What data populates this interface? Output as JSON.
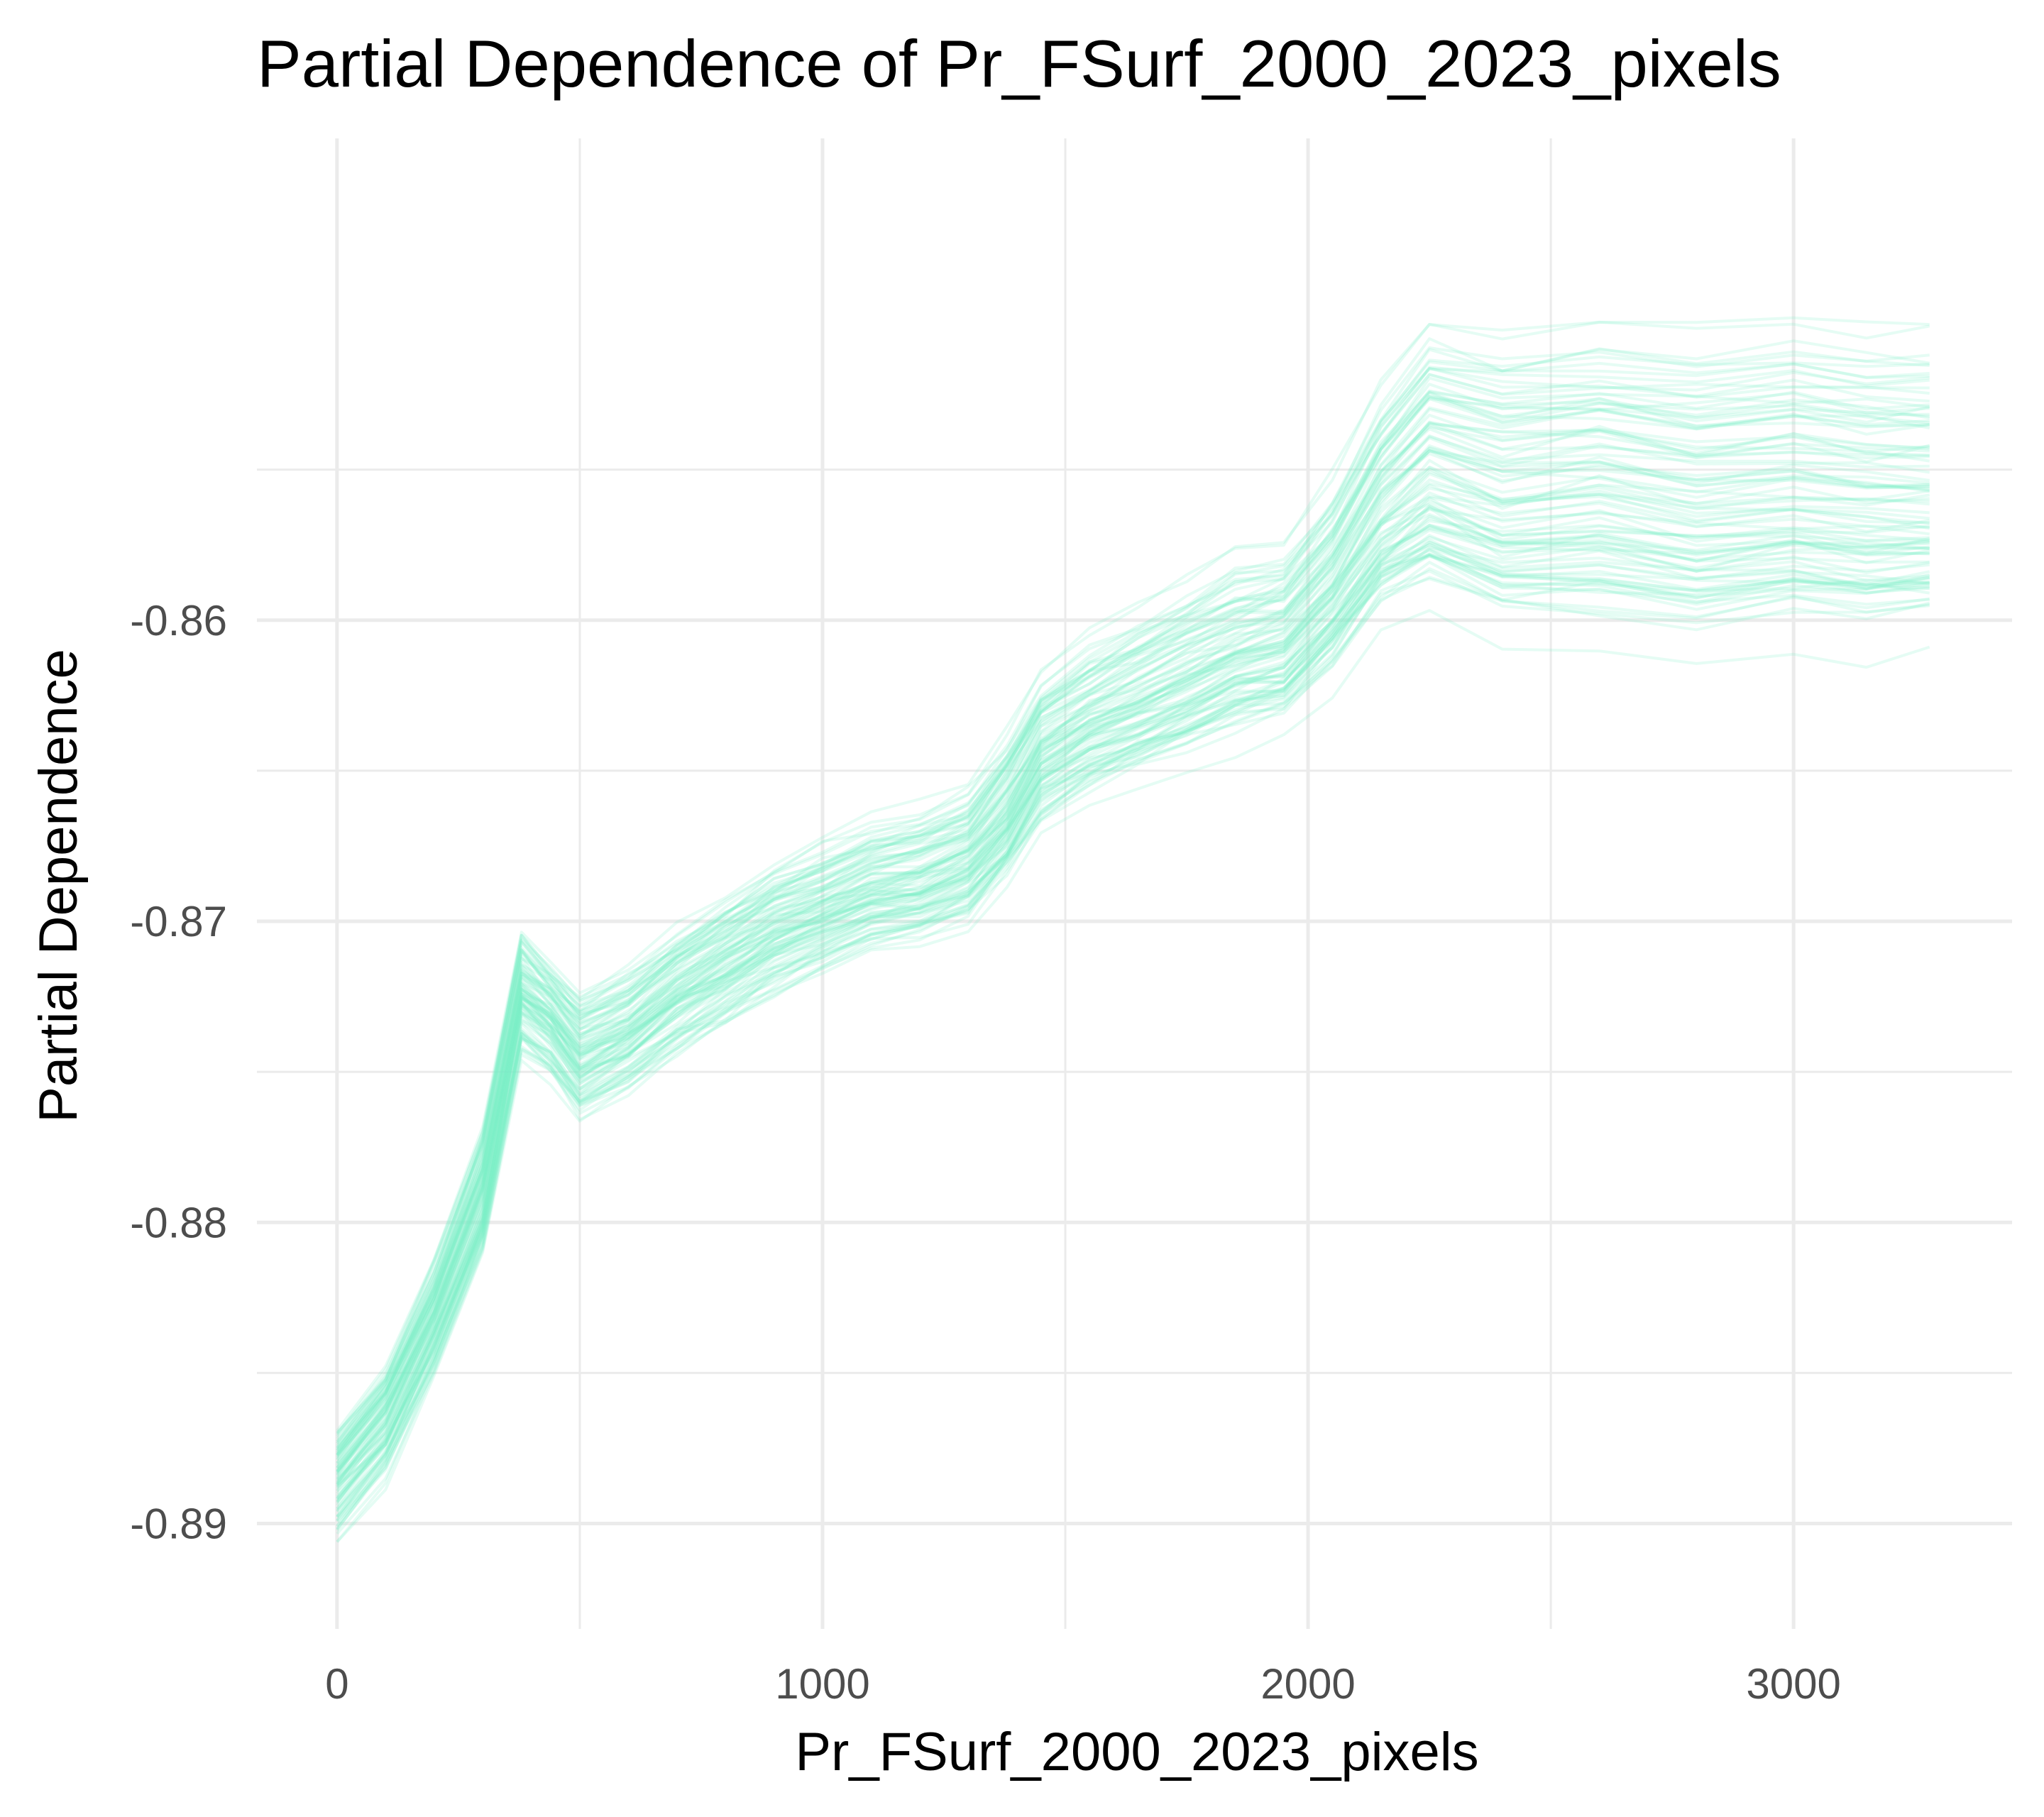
{
  "chart_data": {
    "type": "line",
    "title": "Partial Dependence of Pr_FSurf_2000_2023_pixels",
    "xlabel": "Pr_FSurf_2000_2023_pixels",
    "ylabel": "Partial Dependence",
    "xlim": [
      -165,
      3450
    ],
    "ylim": [
      -0.8935,
      -0.844
    ],
    "x_ticks": [
      0,
      1000,
      2000,
      3000
    ],
    "x_tick_labels": [
      "0",
      "1000",
      "2000",
      "3000"
    ],
    "x_minor_ticks": [
      500,
      1500,
      2500
    ],
    "y_ticks": [
      -0.89,
      -0.88,
      -0.87,
      -0.86
    ],
    "y_tick_labels": [
      "-0.89",
      "-0.88",
      "-0.87",
      "-0.86"
    ],
    "y_minor_ticks": [
      -0.885,
      -0.875,
      -0.865,
      -0.855
    ],
    "grid": true,
    "legend": "none",
    "line_color": "#7df0c8",
    "line_opacity": 0.2,
    "curve_count": 100,
    "x": [
      0,
      100,
      200,
      300,
      380,
      440,
      500,
      600,
      700,
      800,
      900,
      1000,
      1100,
      1200,
      1300,
      1380,
      1450,
      1550,
      1650,
      1750,
      1850,
      1950,
      2050,
      2150,
      2250,
      2400,
      2600,
      2800,
      3000,
      3150,
      3280
    ],
    "representative_series": [
      {
        "values": [
          -0.8885,
          -0.8865,
          -0.883,
          -0.879,
          -0.8725,
          -0.8732,
          -0.8745,
          -0.8738,
          -0.8725,
          -0.8715,
          -0.8705,
          -0.8698,
          -0.869,
          -0.8688,
          -0.868,
          -0.8665,
          -0.8645,
          -0.8635,
          -0.8628,
          -0.862,
          -0.8612,
          -0.8608,
          -0.859,
          -0.8565,
          -0.855,
          -0.856,
          -0.8555,
          -0.856,
          -0.8558,
          -0.856,
          -0.856
        ]
      },
      {
        "values": [
          -0.8875,
          -0.8855,
          -0.882,
          -0.8775,
          -0.871,
          -0.872,
          -0.873,
          -0.8722,
          -0.871,
          -0.87,
          -0.869,
          -0.8682,
          -0.8675,
          -0.8672,
          -0.8665,
          -0.8648,
          -0.8628,
          -0.8618,
          -0.861,
          -0.86,
          -0.8592,
          -0.859,
          -0.857,
          -0.854,
          -0.852,
          -0.8525,
          -0.8522,
          -0.8525,
          -0.8522,
          -0.8525,
          -0.8525
        ]
      },
      {
        "values": [
          -0.89,
          -0.888,
          -0.8845,
          -0.8805,
          -0.874,
          -0.8748,
          -0.876,
          -0.8752,
          -0.874,
          -0.873,
          -0.872,
          -0.8712,
          -0.8705,
          -0.8702,
          -0.8695,
          -0.868,
          -0.8662,
          -0.8652,
          -0.8645,
          -0.8638,
          -0.863,
          -0.8625,
          -0.861,
          -0.8588,
          -0.858,
          -0.859,
          -0.8592,
          -0.8595,
          -0.859,
          -0.8592,
          -0.859
        ]
      },
      {
        "values": [
          -0.889,
          -0.8872,
          -0.884,
          -0.88,
          -0.8728,
          -0.8738,
          -0.8752,
          -0.8742,
          -0.8728,
          -0.8718,
          -0.8708,
          -0.8702,
          -0.8695,
          -0.8692,
          -0.8685,
          -0.8672,
          -0.8652,
          -0.8642,
          -0.8635,
          -0.8628,
          -0.862,
          -0.8618,
          -0.86,
          -0.8578,
          -0.8568,
          -0.8575,
          -0.8572,
          -0.8578,
          -0.8575,
          -0.8578,
          -0.8578
        ]
      },
      {
        "values": [
          -0.888,
          -0.886,
          -0.8828,
          -0.8785,
          -0.872,
          -0.8728,
          -0.874,
          -0.8732,
          -0.8718,
          -0.8708,
          -0.8698,
          -0.8692,
          -0.8685,
          -0.8682,
          -0.8675,
          -0.8658,
          -0.8638,
          -0.8628,
          -0.862,
          -0.8612,
          -0.8605,
          -0.86,
          -0.858,
          -0.8552,
          -0.8535,
          -0.8542,
          -0.854,
          -0.8545,
          -0.8542,
          -0.8545,
          -0.8545
        ]
      }
    ]
  }
}
